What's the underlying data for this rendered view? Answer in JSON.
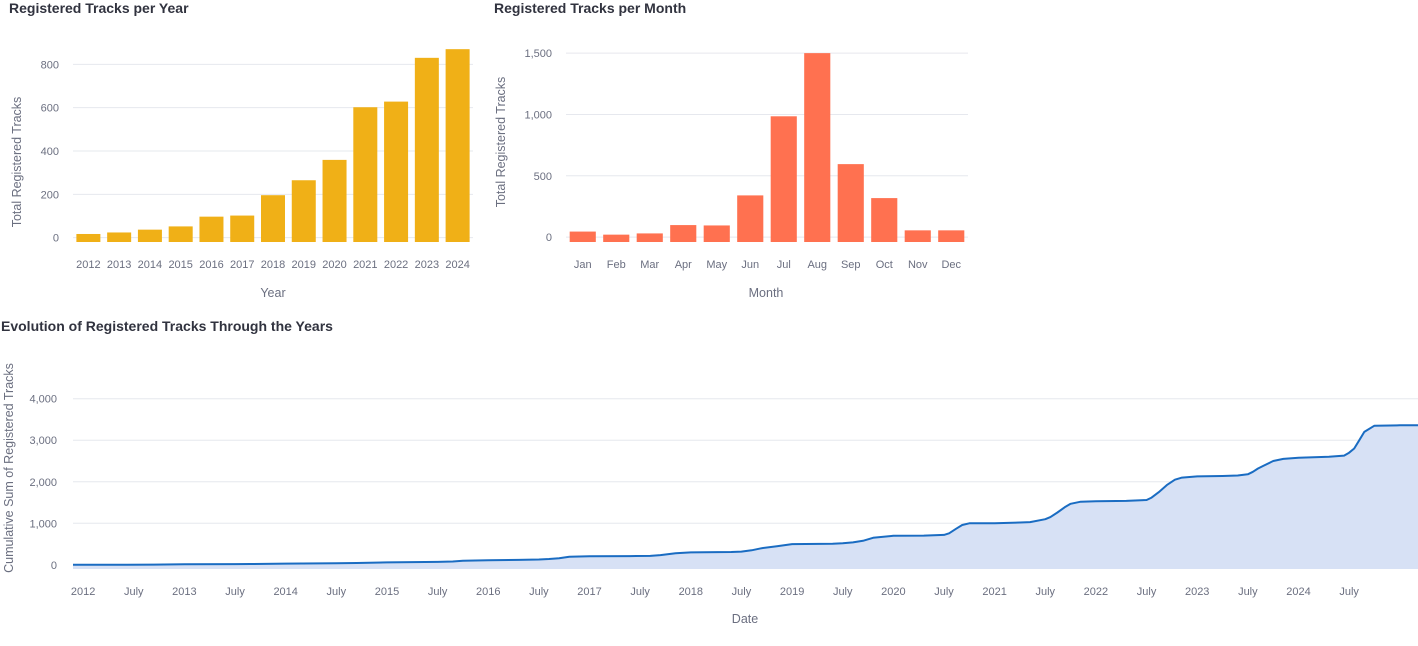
{
  "chart_data": [
    {
      "id": "yearly",
      "type": "bar",
      "title": "Registered Tracks per Year",
      "xlabel": "Year",
      "ylabel": "Total Registered Tracks",
      "categories": [
        "2012",
        "2013",
        "2014",
        "2015",
        "2016",
        "2017",
        "2018",
        "2019",
        "2020",
        "2021",
        "2022",
        "2023",
        "2024"
      ],
      "values": [
        17,
        24,
        37,
        52,
        97,
        102,
        196,
        265,
        359,
        602,
        628,
        830,
        870
      ],
      "y_ticks": [
        0,
        200,
        400,
        600,
        800
      ],
      "y_tick_labels": [
        "0",
        "200",
        "400",
        "600",
        "800"
      ],
      "ylim": [
        -20,
        880
      ],
      "color": "#f0b017",
      "grid": true,
      "legend": "none"
    },
    {
      "id": "monthly",
      "type": "bar",
      "title": "Registered Tracks per Month",
      "xlabel": "Month",
      "ylabel": "Total Registered Tracks",
      "categories": [
        "Jan",
        "Feb",
        "Mar",
        "Apr",
        "May",
        "Jun",
        "Jul",
        "Aug",
        "Sep",
        "Oct",
        "Nov",
        "Dec"
      ],
      "values": [
        45,
        20,
        30,
        98,
        95,
        340,
        985,
        1500,
        595,
        318,
        55,
        55
      ],
      "y_ticks": [
        0,
        500,
        1000,
        1500
      ],
      "y_tick_labels": [
        "0",
        "500",
        "1,000",
        "1,500"
      ],
      "ylim": [
        -40,
        1550
      ],
      "color": "#ff7150",
      "grid": true,
      "legend": "none"
    },
    {
      "id": "cumulative",
      "type": "area",
      "title": "Evolution of Registered Tracks Through the Years",
      "xlabel": "Date",
      "ylabel": "Cumulative Sum of Registered Tracks",
      "x_ticks": [
        2012,
        2012.5,
        2013,
        2013.5,
        2014,
        2014.5,
        2015,
        2015.5,
        2016,
        2016.5,
        2017,
        2017.5,
        2018,
        2018.5,
        2019,
        2019.5,
        2020,
        2020.5,
        2021,
        2021.5,
        2022,
        2022.5,
        2023,
        2023.5,
        2024,
        2024.5
      ],
      "x_tick_labels": [
        "2012",
        "July",
        "2013",
        "July",
        "2014",
        "July",
        "2015",
        "July",
        "2016",
        "July",
        "2017",
        "July",
        "2018",
        "July",
        "2019",
        "July",
        "2020",
        "July",
        "2021",
        "July",
        "2022",
        "July",
        "2023",
        "July",
        "2024",
        "July"
      ],
      "y_ticks": [
        0,
        1000,
        2000,
        3000,
        4000
      ],
      "y_tick_labels": [
        "0",
        "1,000",
        "2,000",
        "3,000",
        "4,000"
      ],
      "xlim": [
        2011.9,
        2025.18
      ],
      "ylim": [
        -100,
        4450
      ],
      "line_color": "#1a6cc2",
      "fill_color": "#d7e1f5",
      "grid": true,
      "legend": "none",
      "x": [
        2011.9,
        2012.4,
        2012.7,
        2013.0,
        2013.5,
        2013.65,
        2014.0,
        2014.5,
        2014.7,
        2015.0,
        2015.5,
        2015.65,
        2015.75,
        2016.0,
        2016.3,
        2016.5,
        2016.6,
        2016.7,
        2016.8,
        2017.0,
        2017.4,
        2017.6,
        2017.7,
        2017.85,
        2018.0,
        2018.4,
        2018.5,
        2018.6,
        2018.7,
        2018.85,
        2019.0,
        2019.4,
        2019.5,
        2019.6,
        2019.7,
        2019.8,
        2020.0,
        2020.3,
        2020.5,
        2020.55,
        2020.62,
        2020.68,
        2020.75,
        2021.0,
        2021.25,
        2021.35,
        2021.5,
        2021.55,
        2021.62,
        2021.7,
        2021.75,
        2021.85,
        2022.0,
        2022.3,
        2022.5,
        2022.55,
        2022.62,
        2022.7,
        2022.78,
        2022.85,
        2023.0,
        2023.25,
        2023.4,
        2023.5,
        2023.55,
        2023.6,
        2023.65,
        2023.75,
        2023.85,
        2024.0,
        2024.3,
        2024.45,
        2024.5,
        2024.55,
        2024.6,
        2024.65,
        2024.75,
        2025.0,
        2025.18
      ],
      "y": [
        0,
        2,
        5,
        15,
        17,
        20,
        30,
        40,
        45,
        60,
        70,
        80,
        100,
        110,
        120,
        128,
        140,
        160,
        195,
        205,
        210,
        215,
        235,
        280,
        300,
        310,
        320,
        350,
        400,
        450,
        500,
        510,
        520,
        540,
        580,
        650,
        700,
        705,
        720,
        760,
        870,
        960,
        1000,
        1000,
        1020,
        1030,
        1100,
        1150,
        1260,
        1400,
        1470,
        1520,
        1530,
        1540,
        1560,
        1620,
        1750,
        1920,
        2050,
        2100,
        2130,
        2140,
        2150,
        2180,
        2240,
        2320,
        2380,
        2500,
        2550,
        2580,
        2600,
        2630,
        2700,
        2800,
        3000,
        3200,
        3350,
        3360,
        3360
      ]
    }
  ]
}
